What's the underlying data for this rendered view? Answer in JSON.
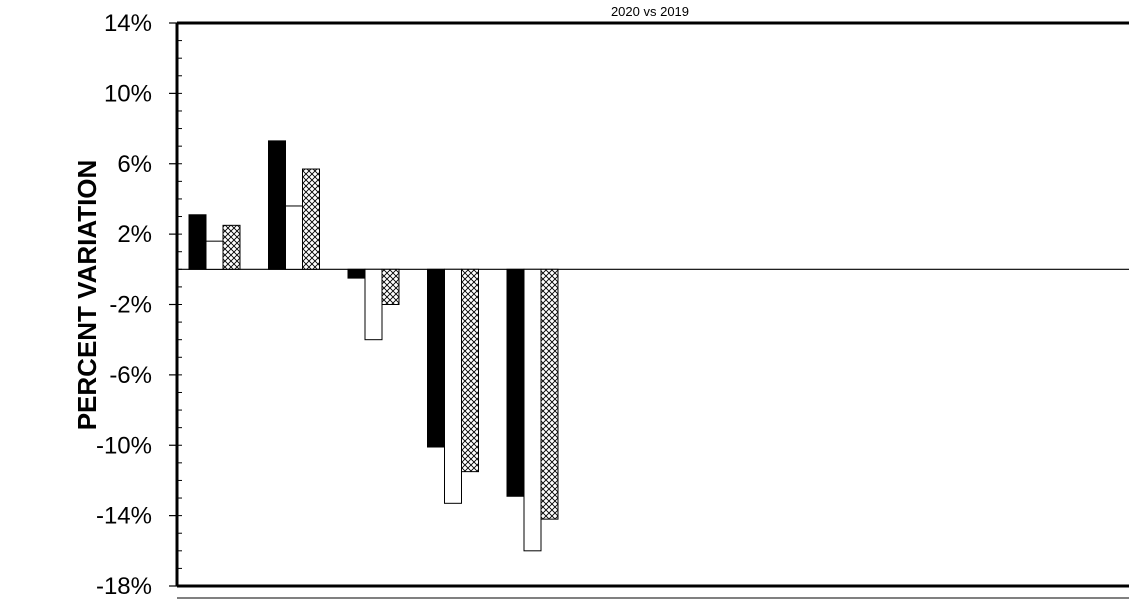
{
  "chart_data": {
    "type": "bar",
    "title": "",
    "subtitle": "2020 vs 2019",
    "xlabel": "",
    "ylabel": "PERCENT VARIATION",
    "ylim": [
      -0.18,
      0.14
    ],
    "yticks": [
      0.14,
      0.1,
      0.06,
      0.02,
      -0.02,
      -0.06,
      -0.1,
      -0.14,
      -0.18
    ],
    "ytick_labels": [
      "14%",
      "10%",
      "6%",
      "2%",
      "-2%",
      "-6%",
      "-10%",
      "-14%",
      "-18%"
    ],
    "categories": [
      "",
      "",
      "",
      "",
      ""
    ],
    "series": [
      {
        "style": "solid-black",
        "values": [
          0.031,
          0.073,
          -0.005,
          -0.101,
          -0.129
        ]
      },
      {
        "style": "white",
        "values": [
          0.016,
          0.036,
          -0.04,
          -0.133,
          -0.16
        ]
      },
      {
        "style": "crosshatch",
        "values": [
          0.025,
          0.057,
          -0.02,
          -0.115,
          -0.142
        ]
      }
    ],
    "grid": false,
    "legend": "none"
  }
}
